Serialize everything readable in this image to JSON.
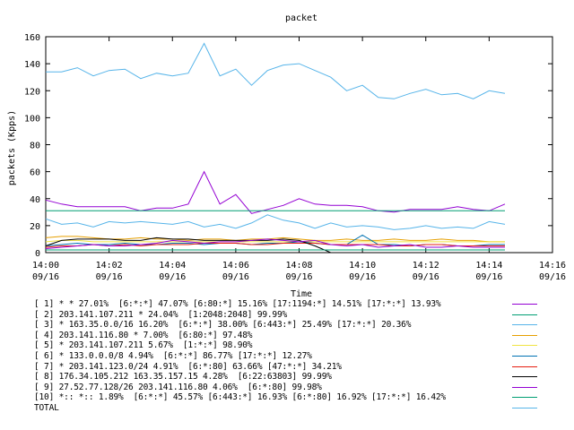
{
  "chart_data": {
    "type": "line",
    "title": "packet",
    "xlabel": "Time",
    "ylabel": "packets (Kpps)",
    "ylim": [
      0,
      160
    ],
    "yticks": [
      0,
      20,
      40,
      60,
      80,
      100,
      120,
      140,
      160
    ],
    "xlim": [
      0,
      16
    ],
    "xticks": [
      {
        "t": 0,
        "line1": "14:00",
        "line2": "09/16"
      },
      {
        "t": 2,
        "line1": "14:02",
        "line2": "09/16"
      },
      {
        "t": 4,
        "line1": "14:04",
        "line2": "09/16"
      },
      {
        "t": 6,
        "line1": "14:06",
        "line2": "09/16"
      },
      {
        "t": 8,
        "line1": "14:08",
        "line2": "09/16"
      },
      {
        "t": 10,
        "line1": "14:10",
        "line2": "09/16"
      },
      {
        "t": 12,
        "line1": "14:12",
        "line2": "09/16"
      },
      {
        "t": 14,
        "line1": "14:14",
        "line2": "09/16"
      },
      {
        "t": 16,
        "line1": "14:16",
        "line2": "09/16"
      }
    ],
    "x": [
      0,
      0.5,
      1,
      1.5,
      2,
      2.5,
      3,
      3.5,
      4,
      4.5,
      5,
      5.5,
      6,
      6.5,
      7,
      7.5,
      8,
      8.5,
      9,
      9.5,
      10,
      10.5,
      11,
      11.5,
      12,
      12.5,
      13,
      13.5,
      14,
      14.5
    ],
    "series": [
      {
        "name": "[ 1] * * 27.01%  [6:*:*] 47.07% [6:80:*] 15.16% [17:1194:*] 14.51% [17:*:*] 13.93%",
        "color": "#9400d3",
        "values": [
          39,
          36,
          34,
          34,
          34,
          34,
          31,
          33,
          33,
          36,
          60,
          36,
          43,
          29,
          32,
          35,
          40,
          36,
          35,
          35,
          34,
          31,
          30,
          32,
          32,
          32,
          34,
          32,
          31,
          36
        ]
      },
      {
        "name": "[ 2] 203.141.107.211 * 24.04%  [1:2048:2048] 99.99%",
        "color": "#009e73",
        "values": [
          31,
          31,
          31,
          31,
          31,
          31,
          31,
          31,
          31,
          31,
          31,
          31,
          31,
          31,
          31,
          31,
          31,
          31,
          31,
          31,
          31,
          31,
          31,
          31,
          31,
          31,
          31,
          31,
          31,
          31
        ]
      },
      {
        "name": "[ 3] * 163.35.0.0/16 16.20%  [6:*:*] 38.00% [6:443:*] 25.49% [17:*:*] 20.36%",
        "color": "#56b4e9",
        "values": [
          25,
          21,
          22,
          19,
          23,
          22,
          23,
          22,
          21,
          23,
          19,
          21,
          18,
          22,
          28,
          24,
          22,
          18,
          22,
          19,
          20,
          19,
          17,
          18,
          20,
          18,
          19,
          18,
          23,
          21
        ]
      },
      {
        "name": "[ 4] 203.141.116.80 * 7.00%  [6:80:*] 97.48%",
        "color": "#e69f00",
        "values": [
          11,
          12,
          12,
          11,
          10,
          10,
          11,
          10,
          10,
          9,
          10,
          10,
          9,
          10,
          10,
          11,
          10,
          9,
          9,
          10,
          9,
          9,
          10,
          9,
          9,
          10,
          9,
          9,
          8,
          8
        ]
      },
      {
        "name": "[ 5] * 203.141.107.211 5.67%  [1:*:*] 98.90%",
        "color": "#f0e442",
        "values": [
          8,
          9,
          9,
          8,
          8,
          8,
          8,
          8,
          8,
          8,
          8,
          8,
          8,
          8,
          8,
          8,
          8,
          8,
          8,
          8,
          8,
          8,
          8,
          8,
          8,
          8,
          8,
          8,
          8,
          8
        ]
      },
      {
        "name": "[ 6] * 133.0.0.0/8 4.94%  [6:*:*] 86.77% [17:*:*] 12.27%",
        "color": "#0072b2",
        "values": [
          5,
          6,
          7,
          6,
          6,
          7,
          6,
          6,
          7,
          7,
          6,
          7,
          7,
          6,
          7,
          7,
          8,
          7,
          6,
          6,
          13,
          6,
          6,
          5,
          6,
          6,
          5,
          5,
          6,
          6
        ]
      },
      {
        "name": "[ 7] * 203.141.123.0/24 4.91%  [6:*:80] 63.66% [47:*:*] 34.21%",
        "color": "#e51e10",
        "values": [
          4,
          5,
          5,
          6,
          5,
          6,
          5,
          6,
          6,
          6,
          7,
          7,
          7,
          6,
          6,
          7,
          7,
          7,
          6,
          6,
          6,
          6,
          5,
          5,
          6,
          6,
          5,
          5,
          5,
          5
        ]
      },
      {
        "name": "[ 8] 176.34.105.212 163.35.157.15 4.28%  [6:22:63803] 99.99%",
        "color": "#000000",
        "values": [
          5,
          9,
          10,
          10,
          10,
          9,
          9,
          11,
          10,
          10,
          9,
          9,
          9,
          9,
          9,
          10,
          9,
          5,
          0,
          0,
          0,
          0,
          0,
          0,
          0,
          0,
          0,
          0,
          0,
          0
        ]
      },
      {
        "name": "[ 9] 27.52.77.128/26 203.141.116.80 4.06%  [6:*:80] 99.98%",
        "color": "#9400d3",
        "values": [
          3,
          4,
          5,
          6,
          5,
          5,
          6,
          7,
          9,
          8,
          7,
          8,
          8,
          9,
          10,
          9,
          8,
          9,
          6,
          5,
          6,
          4,
          5,
          6,
          4,
          4,
          5,
          4,
          4,
          4
        ]
      },
      {
        "name": "[10] *:: *:: 1.89%  [6:*:*] 45.57% [6:443:*] 16.93% [6:*:80] 16.92% [17:*:*] 16.42%",
        "color": "#009e73",
        "values": [
          2,
          2,
          2,
          2,
          2,
          2,
          2,
          2,
          2,
          2,
          2,
          2,
          2,
          2,
          2,
          2,
          2,
          2,
          2,
          2,
          2,
          2,
          2,
          2,
          2,
          2,
          2,
          2,
          2,
          2
        ]
      },
      {
        "name": "TOTAL",
        "color": "#56b4e9",
        "values": [
          134,
          134,
          137,
          131,
          135,
          136,
          129,
          133,
          131,
          133,
          155,
          131,
          136,
          124,
          135,
          139,
          140,
          135,
          130,
          120,
          124,
          115,
          114,
          118,
          121,
          117,
          118,
          114,
          120,
          118
        ]
      }
    ]
  }
}
